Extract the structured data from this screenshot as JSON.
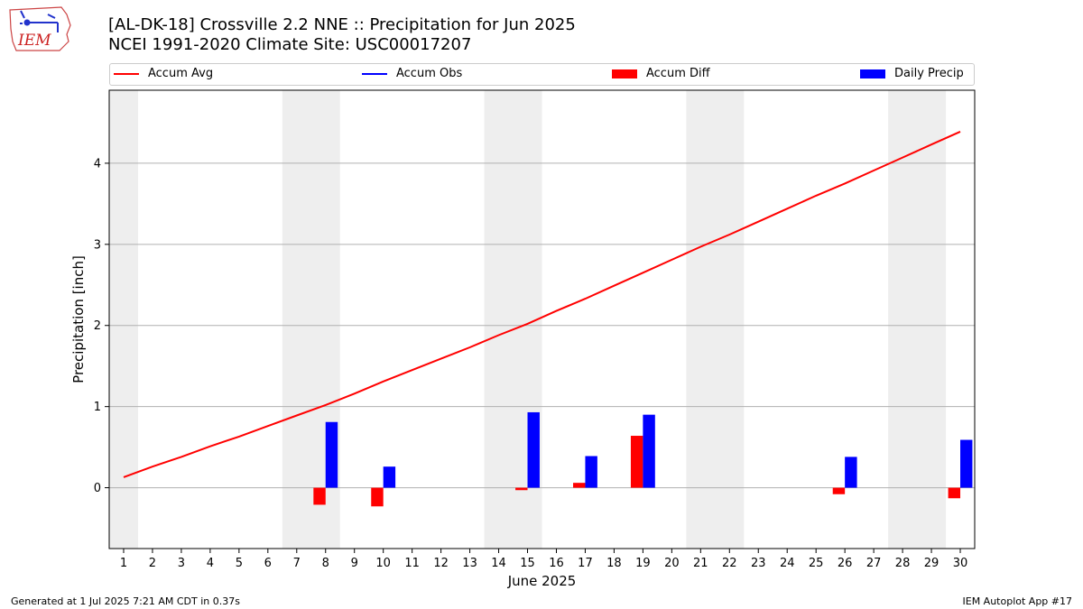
{
  "header": {
    "title_line1": "[AL-DK-18] Crossville 2.2 NNE :: Precipitation for Jun 2025",
    "title_line2": "NCEI 1991-2020 Climate Site: USC00017207"
  },
  "logo": {
    "text": "IEM",
    "color": "#cc2222",
    "icon": "iem-weather-station-logo"
  },
  "legend": [
    {
      "label": "Accum Avg",
      "kind": "line",
      "color": "#ff0000"
    },
    {
      "label": "Accum Obs",
      "kind": "line",
      "color": "#0000ff"
    },
    {
      "label": "Accum Diff",
      "kind": "bar",
      "color": "#ff0000"
    },
    {
      "label": "Daily Precip",
      "kind": "bar",
      "color": "#0000ff"
    }
  ],
  "footer": {
    "left": "Generated at 1 Jul 2025 7:21 AM CDT in 0.37s",
    "right": "IEM Autoplot App #17"
  },
  "chart_data": {
    "type": "bar",
    "title": "[AL-DK-18] Crossville 2.2 NNE :: Precipitation for Jun 2025",
    "xlabel": "June 2025",
    "ylabel": "Precipitation [inch]",
    "ylim": [
      -0.75,
      4.9
    ],
    "yticks": [
      0,
      1,
      2,
      3,
      4
    ],
    "xticks": [
      "1",
      "2",
      "3",
      "4",
      "5",
      "6",
      "7",
      "8",
      "9",
      "10",
      "11",
      "12",
      "13",
      "14",
      "15",
      "16",
      "17",
      "18",
      "19",
      "20",
      "21",
      "22",
      "23",
      "24",
      "25",
      "26",
      "27",
      "28",
      "29",
      "30"
    ],
    "grid": "horizontal",
    "legend_position": "top",
    "weekend_shading": [
      [
        0.5,
        1.5
      ],
      [
        6.5,
        8.5
      ],
      [
        13.5,
        15.5
      ],
      [
        20.5,
        22.5
      ],
      [
        27.5,
        29.5
      ]
    ],
    "colors": {
      "avg": "#ff0000",
      "diff": "#ff0000",
      "daily": "#0000ff",
      "shade": "#eeeeee",
      "grid": "#b0b0b0"
    },
    "days": [
      1,
      2,
      3,
      4,
      5,
      6,
      7,
      8,
      9,
      10,
      11,
      12,
      13,
      14,
      15,
      16,
      17,
      18,
      19,
      20,
      21,
      22,
      23,
      24,
      25,
      26,
      27,
      28,
      29,
      30
    ],
    "series": [
      {
        "name": "Accum Avg",
        "kind": "line",
        "values": [
          0.13,
          0.26,
          0.38,
          0.51,
          0.63,
          0.76,
          0.89,
          1.02,
          1.16,
          1.31,
          1.45,
          1.59,
          1.73,
          1.88,
          2.02,
          2.18,
          2.33,
          2.49,
          2.65,
          2.81,
          2.97,
          3.12,
          3.28,
          3.44,
          3.6,
          3.75,
          3.91,
          4.07,
          4.23,
          4.39
        ]
      },
      {
        "name": "Accum Diff",
        "kind": "bar",
        "values": [
          0,
          0,
          0,
          0,
          0,
          0,
          0,
          -0.21,
          0,
          -0.23,
          0,
          0,
          0,
          0,
          -0.03,
          0,
          0.06,
          0,
          0.64,
          0,
          0,
          0,
          0,
          0,
          0,
          -0.08,
          0,
          0,
          0,
          -0.13
        ]
      },
      {
        "name": "Daily Precip",
        "kind": "bar",
        "values": [
          0,
          0,
          0,
          0,
          0,
          0,
          0,
          0.81,
          0,
          0.26,
          0,
          0,
          0,
          0,
          0.93,
          0,
          0.39,
          0,
          0.9,
          0,
          0,
          0,
          0,
          0,
          0,
          0.38,
          0,
          0,
          0,
          0.59
        ]
      }
    ]
  }
}
